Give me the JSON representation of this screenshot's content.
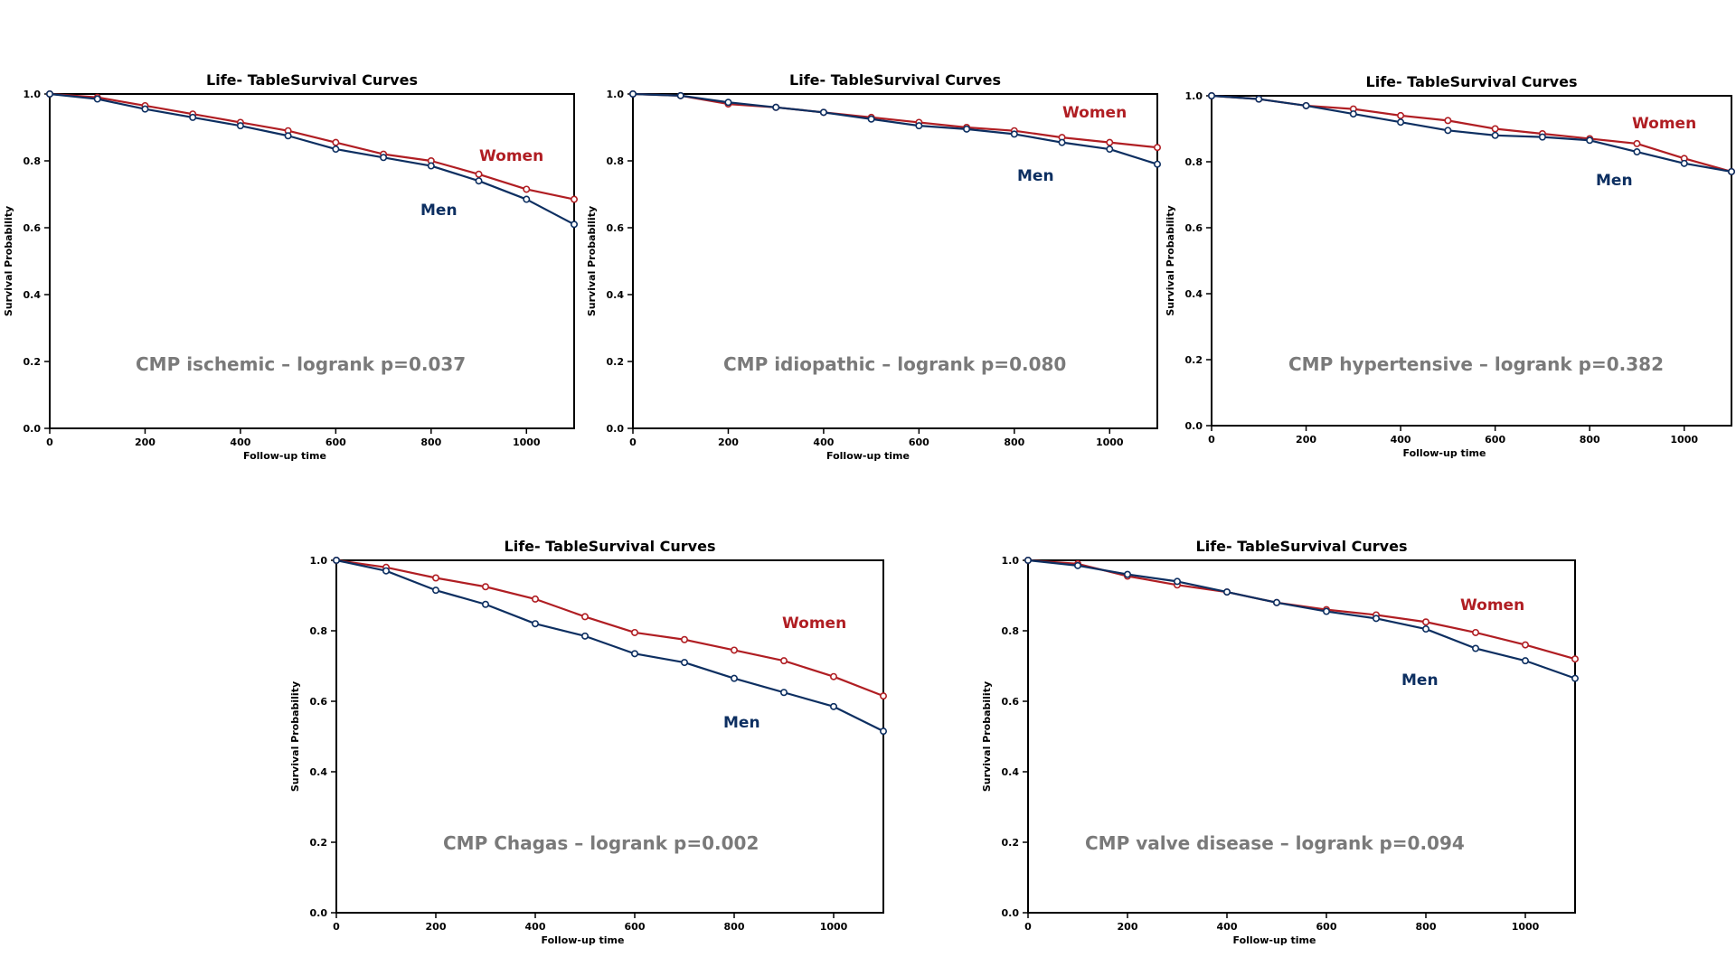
{
  "colors": {
    "women": "#b01e23",
    "men": "#0d2f61",
    "note": "#7a7a7a"
  },
  "chart_data": [
    {
      "type": "line",
      "title": "Life- TableSurvival Curves",
      "xlabel": "Follow-up time",
      "ylabel": "Survival Probability",
      "xlim": [
        0,
        1100
      ],
      "ylim": [
        0,
        1.0
      ],
      "xticks": [
        "0",
        "200",
        "400",
        "600",
        "800",
        "1000"
      ],
      "yticks": [
        "0.0",
        "0.2",
        "0.4",
        "0.6",
        "0.8",
        "1.0"
      ],
      "annotation": "CMP ischemic – logrank p=0.037",
      "x": [
        0,
        100,
        200,
        300,
        400,
        500,
        600,
        700,
        800,
        900,
        1000,
        1100
      ],
      "series": [
        {
          "name": "Women",
          "values": [
            1.0,
            0.99,
            0.965,
            0.94,
            0.915,
            0.89,
            0.855,
            0.82,
            0.8,
            0.76,
            0.715,
            0.685
          ]
        },
        {
          "name": "Men",
          "values": [
            1.0,
            0.985,
            0.955,
            0.93,
            0.905,
            0.875,
            0.835,
            0.81,
            0.785,
            0.74,
            0.685,
            0.61
          ]
        }
      ]
    },
    {
      "type": "line",
      "title": "Life- TableSurvival Curves",
      "xlabel": "Follow-up time",
      "ylabel": "Survival Probability",
      "xlim": [
        0,
        1100
      ],
      "ylim": [
        0,
        1.0
      ],
      "xticks": [
        "0",
        "200",
        "400",
        "600",
        "800",
        "1000"
      ],
      "yticks": [
        "0.0",
        "0.2",
        "0.4",
        "0.6",
        "0.8",
        "1.0"
      ],
      "annotation": "CMP idiopathic – logrank p=0.080",
      "x": [
        0,
        100,
        200,
        300,
        400,
        500,
        600,
        700,
        800,
        900,
        1000,
        1100
      ],
      "series": [
        {
          "name": "Women",
          "values": [
            1.0,
            0.995,
            0.97,
            0.96,
            0.945,
            0.93,
            0.915,
            0.9,
            0.89,
            0.87,
            0.855,
            0.84
          ]
        },
        {
          "name": "Men",
          "values": [
            1.0,
            0.995,
            0.975,
            0.96,
            0.945,
            0.925,
            0.905,
            0.895,
            0.88,
            0.855,
            0.835,
            0.79
          ]
        }
      ]
    },
    {
      "type": "line",
      "title": "Life- TableSurvival Curves",
      "xlabel": "Follow-up time",
      "ylabel": "Survival Probability",
      "xlim": [
        0,
        1100
      ],
      "ylim": [
        0,
        1.0
      ],
      "xticks": [
        "0",
        "200",
        "400",
        "600",
        "800",
        "1000"
      ],
      "yticks": [
        "0.0",
        "0.2",
        "0.4",
        "0.6",
        "0.8",
        "1.0"
      ],
      "annotation": "CMP hypertensive – logrank p=0.382",
      "x": [
        0,
        100,
        200,
        300,
        400,
        500,
        600,
        700,
        800,
        900,
        1000,
        1100
      ],
      "series": [
        {
          "name": "Women",
          "values": [
            1.0,
            0.99,
            0.97,
            0.96,
            0.94,
            0.925,
            0.9,
            0.885,
            0.87,
            0.855,
            0.81,
            0.77
          ]
        },
        {
          "name": "Men",
          "values": [
            1.0,
            0.99,
            0.97,
            0.945,
            0.92,
            0.895,
            0.88,
            0.875,
            0.865,
            0.83,
            0.795,
            0.77
          ]
        }
      ]
    },
    {
      "type": "line",
      "title": "Life- TableSurvival Curves",
      "xlabel": "Follow-up time",
      "ylabel": "Survival Probability",
      "xlim": [
        0,
        1100
      ],
      "ylim": [
        0,
        1.0
      ],
      "xticks": [
        "0",
        "200",
        "400",
        "600",
        "800",
        "1000"
      ],
      "yticks": [
        "0.0",
        "0.2",
        "0.4",
        "0.6",
        "0.8",
        "1.0"
      ],
      "annotation": "CMP Chagas – logrank p=0.002",
      "x": [
        0,
        100,
        200,
        300,
        400,
        500,
        600,
        700,
        800,
        900,
        1000,
        1100
      ],
      "series": [
        {
          "name": "Women",
          "values": [
            1.0,
            0.98,
            0.95,
            0.925,
            0.89,
            0.84,
            0.795,
            0.775,
            0.745,
            0.715,
            0.67,
            0.615
          ]
        },
        {
          "name": "Men",
          "values": [
            1.0,
            0.97,
            0.915,
            0.875,
            0.82,
            0.785,
            0.735,
            0.71,
            0.665,
            0.625,
            0.585,
            0.515
          ]
        }
      ]
    },
    {
      "type": "line",
      "title": "Life- TableSurvival Curves",
      "xlabel": "Follow-up time",
      "ylabel": "Survival Probability",
      "xlim": [
        0,
        1100
      ],
      "ylim": [
        0,
        1.0
      ],
      "xticks": [
        "0",
        "200",
        "400",
        "600",
        "800",
        "1000"
      ],
      "yticks": [
        "0.0",
        "0.2",
        "0.4",
        "0.6",
        "0.8",
        "1.0"
      ],
      "annotation": "CMP valve disease – logrank p=0.094",
      "x": [
        0,
        100,
        200,
        300,
        400,
        500,
        600,
        700,
        800,
        900,
        1000,
        1100
      ],
      "series": [
        {
          "name": "Women",
          "values": [
            1.0,
            0.99,
            0.955,
            0.93,
            0.91,
            0.88,
            0.86,
            0.845,
            0.825,
            0.795,
            0.76,
            0.72
          ]
        },
        {
          "name": "Men",
          "values": [
            1.0,
            0.985,
            0.96,
            0.94,
            0.91,
            0.88,
            0.855,
            0.835,
            0.805,
            0.75,
            0.715,
            0.665
          ]
        }
      ]
    }
  ]
}
